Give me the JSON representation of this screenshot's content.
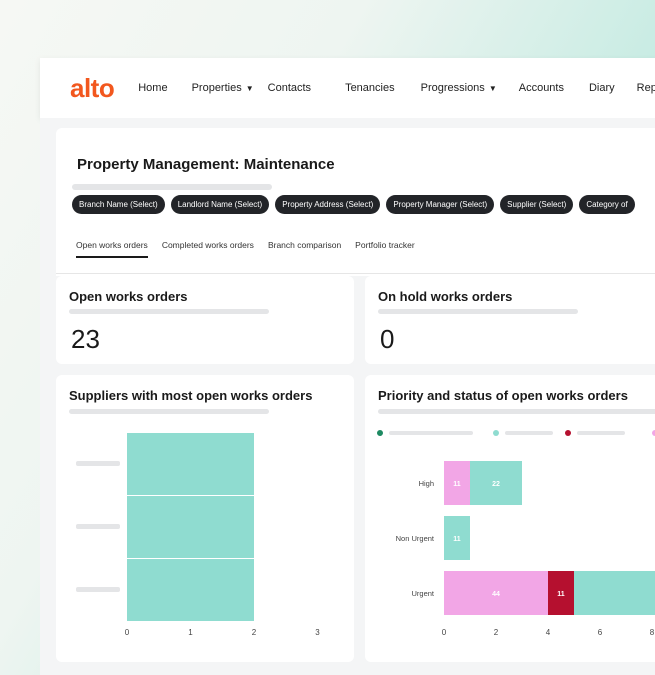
{
  "nav": {
    "logo": "alto",
    "items": [
      {
        "label": "Home",
        "dropdown": false
      },
      {
        "label": "Properties",
        "dropdown": true
      },
      {
        "label": "Contacts",
        "dropdown": false
      },
      {
        "label": "Tenancies",
        "dropdown": false
      },
      {
        "label": "Progressions",
        "dropdown": true
      },
      {
        "label": "Accounts",
        "dropdown": false
      },
      {
        "label": "Diary",
        "dropdown": false
      },
      {
        "label": "Report",
        "dropdown": false
      }
    ]
  },
  "page": {
    "title": "Property Management: Maintenance",
    "filters": [
      "Branch Name (Select)",
      "Landlord Name (Select)",
      "Property Address (Select)",
      "Property Manager (Select)",
      "Supplier (Select)",
      "Category of"
    ],
    "tabs": [
      {
        "label": "Open works orders",
        "active": true
      },
      {
        "label": "Completed works orders",
        "active": false
      },
      {
        "label": "Branch comparison",
        "active": false
      },
      {
        "label": "Portfolio tracker",
        "active": false
      }
    ]
  },
  "kpis": {
    "open": {
      "title": "Open works orders",
      "value": "23"
    },
    "on_hold": {
      "title": "On hold works orders",
      "value": "0"
    }
  },
  "colors": {
    "brand": "#f2571e",
    "teal": "#8fdcd0",
    "pink": "#f2a6e6",
    "crimson": "#b5102f",
    "green": "#1e8a62"
  },
  "chart_data": [
    {
      "type": "bar",
      "orientation": "horizontal",
      "title": "Suppliers with most open works orders",
      "categories": [
        "",
        "",
        ""
      ],
      "values": [
        2,
        2,
        2
      ],
      "xlim": [
        0,
        3
      ],
      "xticks": [
        "0",
        "1",
        "2",
        "3"
      ]
    },
    {
      "type": "bar",
      "orientation": "horizontal",
      "stacked": true,
      "title": "Priority and status of open works orders",
      "categories": [
        "High",
        "Non Urgent",
        "Urgent"
      ],
      "legend_colors": [
        "#1e8a62",
        "#8fdcd0",
        "#b5102f",
        "#f2a6e6"
      ],
      "xlim": [
        0,
        8
      ],
      "xticks": [
        "0",
        "2",
        "4",
        "6",
        "8"
      ],
      "segments": [
        [
          {
            "value": 1,
            "label": "11",
            "color": "#f2a6e6"
          },
          {
            "value": 2,
            "label": "22",
            "color": "#8fdcd0"
          }
        ],
        [
          {
            "value": 1,
            "label": "11",
            "color": "#8fdcd0"
          }
        ],
        [
          {
            "value": 4,
            "label": "44",
            "color": "#f2a6e6"
          },
          {
            "value": 1,
            "label": "11",
            "color": "#b5102f"
          },
          {
            "value": 4,
            "label": "",
            "color": "#8fdcd0"
          }
        ]
      ]
    }
  ]
}
